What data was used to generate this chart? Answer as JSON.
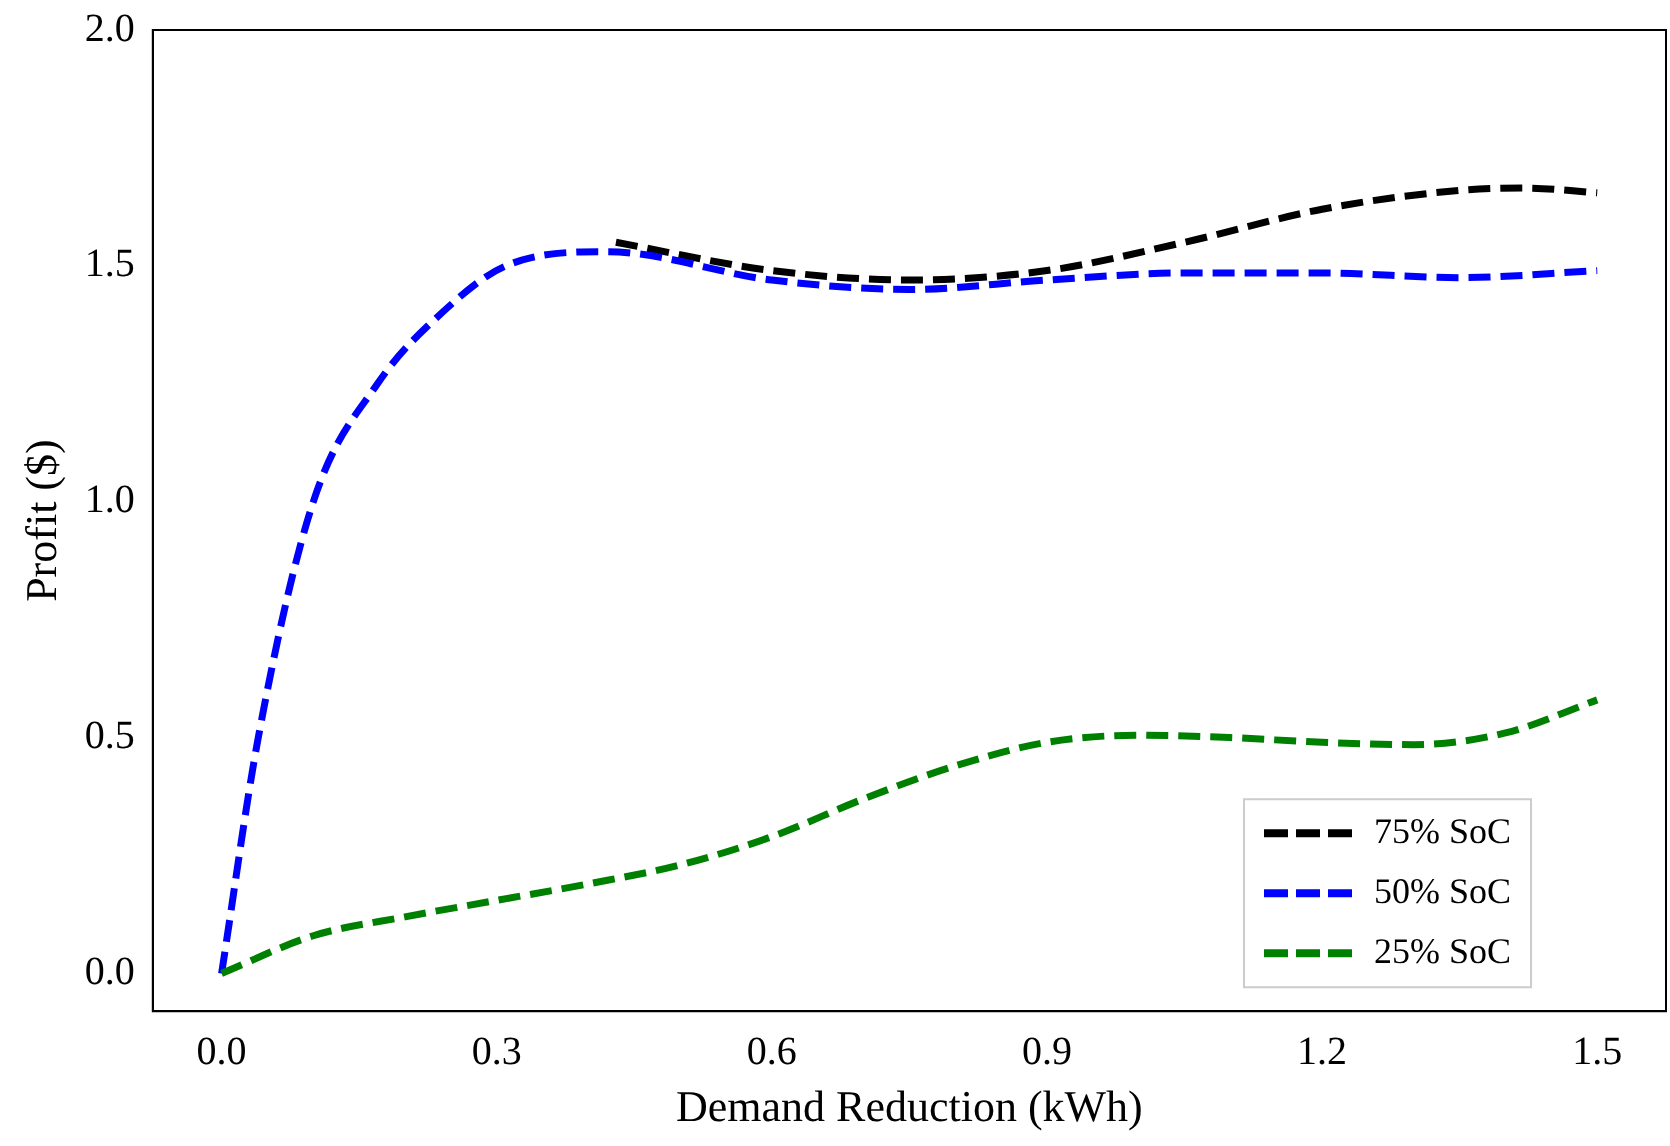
{
  "chart_data": {
    "type": "line",
    "xlabel": "Demand Reduction (kWh)",
    "ylabel": "Profit ($)",
    "xlim": [
      -0.075,
      1.575
    ],
    "ylim": [
      -0.08,
      2.0
    ],
    "xticks": [
      {
        "value": 0,
        "label": "0.0"
      },
      0.3,
      0.6,
      0.9,
      1.2,
      1.5
    ],
    "yticks": [
      {
        "value": 0,
        "label": "0.0"
      },
      0.5,
      {
        "value": 1,
        "label": "1.0"
      },
      1.5,
      {
        "value": 2,
        "label": "2.0"
      }
    ],
    "grid": false,
    "legend": "bottom right",
    "line_style": "dashed",
    "marker": "none",
    "series": [
      {
        "name": "75% SoC",
        "color": "#000000",
        "x": [
          0.43,
          0.6,
          0.75,
          0.9,
          1.05,
          1.2,
          1.35,
          1.42,
          1.5
        ],
        "values": [
          1.55,
          1.49,
          1.47,
          1.49,
          1.55,
          1.62,
          1.66,
          1.665,
          1.655
        ]
      },
      {
        "name": "50% SoC",
        "color": "#0000ff",
        "x": [
          0,
          0.04,
          0.1,
          0.17,
          0.24,
          0.31,
          0.42,
          0.6,
          0.75,
          0.9,
          1.05,
          1.2,
          1.35,
          1.5
        ],
        "values": [
          0,
          0.5,
          1.0,
          1.25,
          1.4,
          1.5,
          1.53,
          1.47,
          1.45,
          1.47,
          1.485,
          1.485,
          1.475,
          1.49
        ]
      },
      {
        "name": "25% SoC",
        "color": "#008000",
        "x": [
          0,
          0.1,
          0.2,
          0.3,
          0.4,
          0.5,
          0.6,
          0.7,
          0.8,
          0.9,
          1.0,
          1.1,
          1.2,
          1.3,
          1.4,
          1.5
        ],
        "values": [
          0,
          0.08,
          0.12,
          0.155,
          0.19,
          0.23,
          0.29,
          0.37,
          0.44,
          0.49,
          0.505,
          0.5,
          0.49,
          0.485,
          0.51,
          0.58
        ]
      }
    ]
  }
}
